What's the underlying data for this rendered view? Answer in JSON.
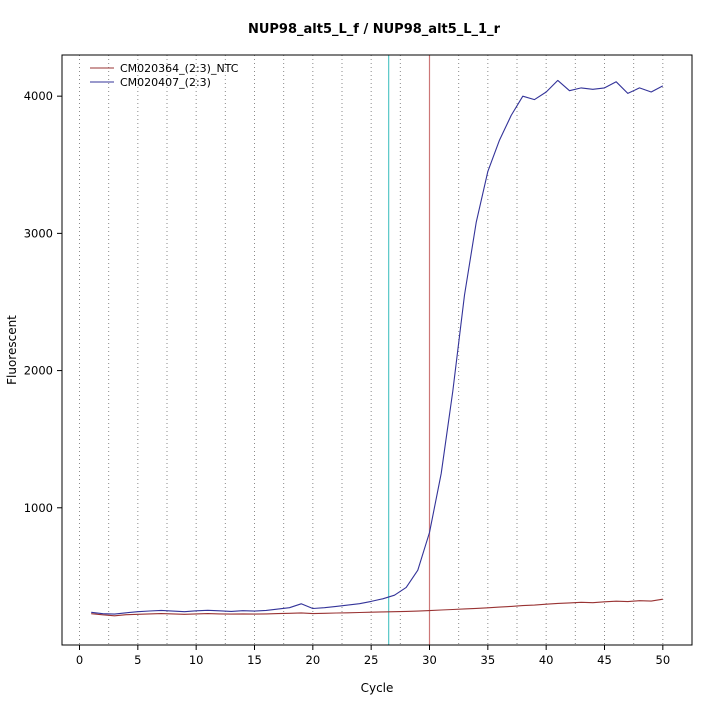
{
  "page": {
    "background": "#ffffff"
  },
  "chart_data": {
    "type": "line",
    "title": "NUP98_alt5_L_f / NUP98_alt5_L_1_r",
    "xlabel": "Cycle",
    "ylabel": "Fluorescent",
    "xlim": [
      -1.5,
      52.5
    ],
    "ylim": [
      0,
      4300
    ],
    "x_ticks": [
      0,
      5,
      10,
      15,
      20,
      25,
      30,
      35,
      40,
      45,
      50
    ],
    "y_ticks": [
      1000,
      2000,
      3000,
      4000
    ],
    "grid": {
      "vertical_step": 2.5,
      "style": "dotted",
      "color": "#8a8a8a"
    },
    "legend": {
      "position": "top-left"
    },
    "x": [
      1,
      2,
      3,
      4,
      5,
      6,
      7,
      8,
      9,
      10,
      11,
      12,
      13,
      14,
      15,
      16,
      17,
      18,
      19,
      20,
      21,
      22,
      23,
      24,
      25,
      26,
      27,
      28,
      29,
      30,
      31,
      32,
      33,
      34,
      35,
      36,
      37,
      38,
      39,
      40,
      41,
      42,
      43,
      44,
      45,
      46,
      47,
      48,
      49,
      50
    ],
    "series": [
      {
        "name": "CM020364_(2:3)_NTC",
        "color": "#993333",
        "values": [
          228,
          220,
          213,
          221,
          224,
          227,
          229,
          227,
          224,
          227,
          229,
          227,
          225,
          227,
          225,
          227,
          229,
          231,
          234,
          229,
          231,
          233,
          235,
          237,
          239,
          241,
          243,
          245,
          247,
          251,
          255,
          259,
          263,
          267,
          271,
          276,
          281,
          287,
          291,
          297,
          303,
          307,
          311,
          308,
          315,
          319,
          316,
          323,
          320,
          334
        ]
      },
      {
        "name": "CM020407_(2:3)",
        "color": "#333399",
        "values": [
          238,
          228,
          225,
          235,
          243,
          248,
          252,
          247,
          243,
          249,
          253,
          249,
          245,
          250,
          247,
          252,
          262,
          272,
          300,
          266,
          272,
          281,
          291,
          301,
          318,
          337,
          363,
          420,
          545,
          820,
          1250,
          1850,
          2550,
          3080,
          3450,
          3680,
          3860,
          4000,
          3975,
          4030,
          4115,
          4040,
          4060,
          4050,
          4060,
          4105,
          4020,
          4060,
          4030,
          4075
        ]
      }
    ],
    "vlines": [
      {
        "x": 26.5,
        "color": "#55c6c6",
        "style": "solid",
        "name": "ct-line-cyan"
      },
      {
        "x": 30,
        "color": "#cc7777",
        "style": "solid",
        "name": "ct-line-red"
      }
    ]
  }
}
